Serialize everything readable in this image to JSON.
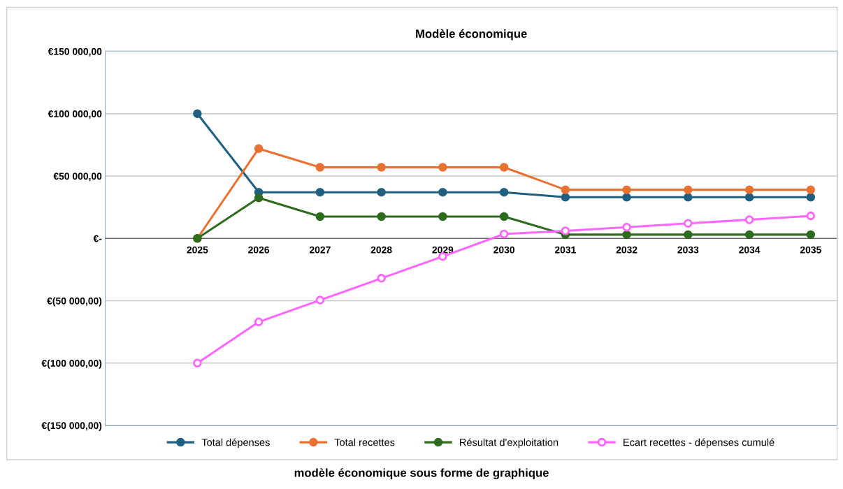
{
  "chart_data": {
    "type": "line",
    "title": "Modèle économique",
    "categories": [
      "2025",
      "2026",
      "2027",
      "2028",
      "2029",
      "2030",
      "2031",
      "2032",
      "2033",
      "2034",
      "2035"
    ],
    "series": [
      {
        "name": "Total dépenses",
        "color": "#1f5f80",
        "values": [
          100000,
          37000,
          37000,
          37000,
          37000,
          37000,
          33000,
          33000,
          33000,
          33000,
          33000
        ]
      },
      {
        "name": "Total recettes",
        "color": "#e97132",
        "values": [
          0,
          72000,
          57000,
          57000,
          57000,
          57000,
          39000,
          39000,
          39000,
          39000,
          39000
        ]
      },
      {
        "name": "Résultat d'exploitation",
        "color": "#2e6b1f",
        "values": [
          0,
          32500,
          17500,
          17500,
          17500,
          17500,
          3000,
          3000,
          3000,
          3000,
          3000
        ]
      },
      {
        "name": "Ecart recettes - dépenses cumulé",
        "color": "#ff66ff",
        "values": [
          -100000,
          -67000,
          -49500,
          -32000,
          -14500,
          3500,
          6000,
          9000,
          12000,
          15000,
          18000
        ]
      }
    ],
    "ylim": [
      -150000,
      150000
    ],
    "yticks": [
      {
        "value": -150000,
        "label": "€(150 000,00)"
      },
      {
        "value": -100000,
        "label": "€(100 000,00)"
      },
      {
        "value": -50000,
        "label": "€(50 000,00)"
      },
      {
        "value": 0,
        "label": "€-"
      },
      {
        "value": 50000,
        "label": "€50 000,00"
      },
      {
        "value": 100000,
        "label": "€100 000,00"
      },
      {
        "value": 150000,
        "label": "€150 000,00"
      }
    ],
    "grid": "y",
    "legend": "bottom",
    "marker": "circle",
    "line_style": "solid",
    "annotations": [
      "modèle économique sous forme de graphique"
    ]
  }
}
